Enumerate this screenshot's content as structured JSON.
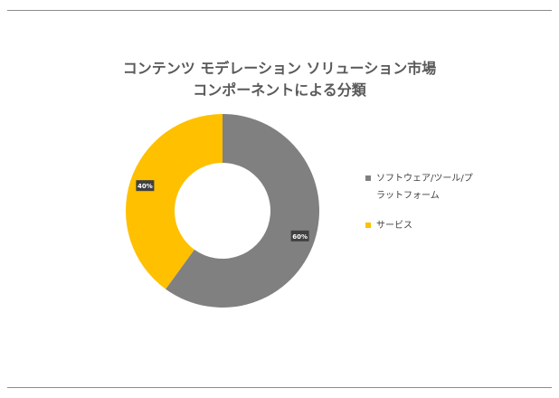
{
  "chart_data": {
    "type": "pie",
    "donut": true,
    "title": "コンテンツ モデレーション ソリューション市場",
    "subtitle": "コンポーネントによる分類",
    "categories": [
      "ソフトウェア/ツール/プラットフォーム",
      "サービス"
    ],
    "values": [
      60,
      40
    ],
    "data_labels": [
      "60%",
      "40%"
    ],
    "colors": [
      "#808080",
      "#ffc000"
    ],
    "legend_position": "right"
  }
}
